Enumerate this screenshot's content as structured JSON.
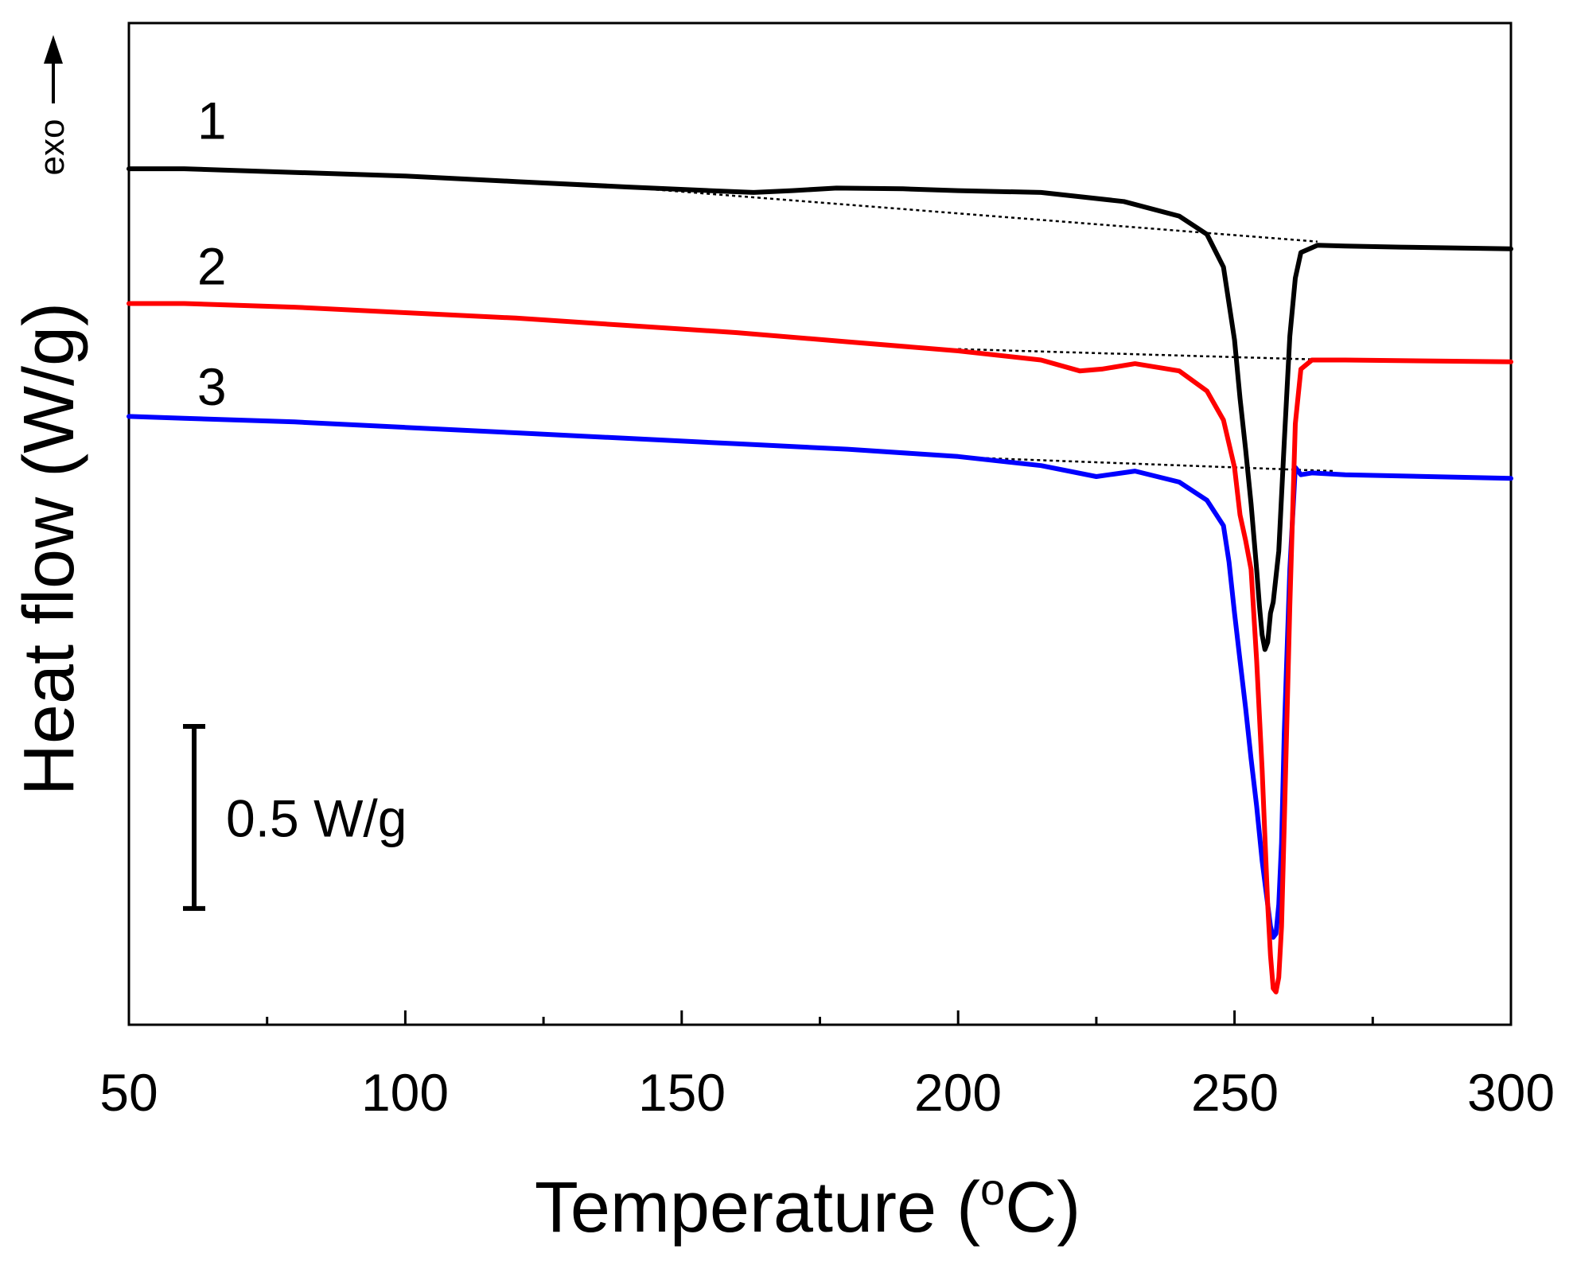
{
  "chart_data": {
    "type": "line",
    "title": "",
    "xlabel": "Temperature (",
    "xlabel_unit_sup": "o",
    "xlabel_unit_rest": "C)",
    "ylabel": "Heat flow (W/g)",
    "xlim": [
      50,
      300
    ],
    "xticks": [
      50,
      100,
      150,
      200,
      250,
      300
    ],
    "xtick_labels": [
      "50",
      "100",
      "150",
      "200",
      "250",
      "300"
    ],
    "minor_xticks": [
      75,
      125,
      175,
      225,
      275
    ],
    "ylim": [
      -1.75,
      1.0
    ],
    "yticks_shown": false,
    "exo_label": "exo",
    "scale_bar": {
      "value_wg": 0.5,
      "label": "0.5 W/g"
    },
    "series": [
      {
        "name": "1",
        "label_at": [
          65,
          0.73
        ],
        "color": "#000000",
        "x": [
          50,
          60,
          80,
          100,
          120,
          140,
          155,
          163,
          170,
          178,
          190,
          200,
          215,
          230,
          240,
          245,
          248,
          250,
          251,
          252,
          253,
          254,
          254.5,
          255,
          255.5,
          256,
          256.5,
          257,
          258,
          259,
          260,
          261,
          262,
          265,
          270,
          280,
          300
        ],
        "y": [
          0.6,
          0.6,
          0.59,
          0.58,
          0.565,
          0.55,
          0.54,
          0.535,
          0.54,
          0.547,
          0.545,
          0.54,
          0.535,
          0.51,
          0.47,
          0.42,
          0.33,
          0.13,
          -0.03,
          -0.17,
          -0.32,
          -0.5,
          -0.6,
          -0.68,
          -0.72,
          -0.7,
          -0.62,
          -0.59,
          -0.45,
          -0.15,
          0.14,
          0.3,
          0.37,
          0.39,
          0.388,
          0.385,
          0.38
        ]
      },
      {
        "name": "2",
        "label_at": [
          65,
          0.33
        ],
        "color": "#ff0000",
        "x": [
          50,
          60,
          80,
          100,
          120,
          140,
          160,
          180,
          200,
          215,
          222,
          226,
          232,
          240,
          245,
          248,
          250,
          251,
          252,
          253,
          254,
          255,
          256,
          256.5,
          257,
          257.5,
          258,
          258.5,
          259,
          260,
          261,
          262,
          264,
          270,
          300
        ],
        "y": [
          0.23,
          0.23,
          0.22,
          0.205,
          0.19,
          0.17,
          0.15,
          0.125,
          0.1,
          0.075,
          0.045,
          0.05,
          0.065,
          0.045,
          -0.01,
          -0.09,
          -0.22,
          -0.35,
          -0.42,
          -0.5,
          -0.75,
          -1.05,
          -1.42,
          -1.56,
          -1.65,
          -1.66,
          -1.62,
          -1.48,
          -1.2,
          -0.6,
          -0.1,
          0.05,
          0.075,
          0.075,
          0.07
        ]
      },
      {
        "name": "3",
        "label_at": [
          65,
          0.0
        ],
        "color": "#0000ff",
        "x": [
          50,
          60,
          80,
          100,
          120,
          140,
          160,
          180,
          200,
          215,
          225,
          232,
          240,
          245,
          248,
          249,
          250,
          251,
          252,
          253,
          254,
          255,
          256,
          256.5,
          257,
          257.5,
          258,
          258.5,
          259,
          260,
          261,
          262,
          264,
          270,
          300
        ],
        "y": [
          -0.08,
          -0.085,
          -0.095,
          -0.11,
          -0.125,
          -0.14,
          -0.155,
          -0.17,
          -0.19,
          -0.215,
          -0.245,
          -0.23,
          -0.26,
          -0.31,
          -0.38,
          -0.48,
          -0.62,
          -0.75,
          -0.88,
          -1.02,
          -1.15,
          -1.3,
          -1.42,
          -1.48,
          -1.51,
          -1.5,
          -1.42,
          -1.25,
          -0.95,
          -0.5,
          -0.22,
          -0.24,
          -0.235,
          -0.24,
          -0.25
        ]
      }
    ],
    "baselines": [
      {
        "series": "1",
        "x": [
          135,
          265
        ],
        "y": [
          0.555,
          0.4
        ]
      },
      {
        "series": "2",
        "x": [
          200,
          268
        ],
        "y": [
          0.105,
          0.075
        ]
      },
      {
        "series": "3",
        "x": [
          197,
          268
        ],
        "y": [
          -0.19,
          -0.23
        ]
      }
    ]
  }
}
